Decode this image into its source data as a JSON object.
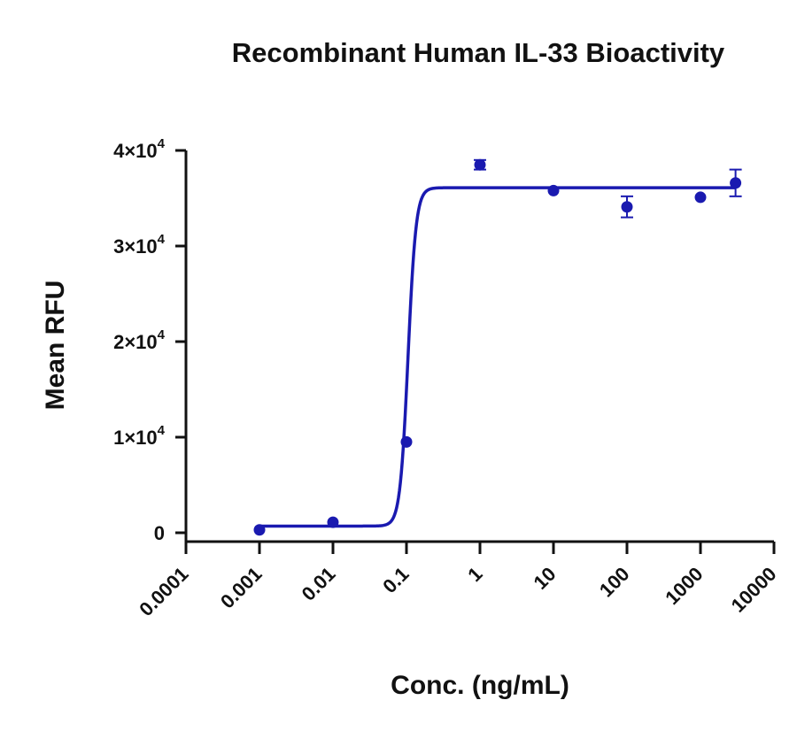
{
  "chart_data": {
    "type": "scatter",
    "title": "Recombinant Human IL-33 Bioactivity",
    "xlabel": "Conc. (ng/mL)",
    "ylabel": "Mean RFU",
    "x_scale": "log",
    "xlim": [
      0.0001,
      10000
    ],
    "ylim": [
      0,
      40000
    ],
    "x_ticks": [
      0.0001,
      0.001,
      0.01,
      0.1,
      1,
      10,
      100,
      1000,
      10000
    ],
    "x_tick_labels": [
      "0.0001",
      "0.001",
      "0.01",
      "0.1",
      "1",
      "10",
      "100",
      "1000",
      "10000"
    ],
    "y_ticks": [
      0,
      10000,
      20000,
      30000,
      40000
    ],
    "y_tick_labels": [
      {
        "mantissa": "0",
        "exponent": ""
      },
      {
        "mantissa": "1×10",
        "exponent": "4"
      },
      {
        "mantissa": "2×10",
        "exponent": "4"
      },
      {
        "mantissa": "3×10",
        "exponent": "4"
      },
      {
        "mantissa": "4×10",
        "exponent": "4"
      }
    ],
    "color": "#1a1ab0",
    "series": [
      {
        "points": [
          {
            "x": 0.001,
            "y": 300,
            "err": 0
          },
          {
            "x": 0.01,
            "y": 1100,
            "err": 0
          },
          {
            "x": 0.1,
            "y": 9500,
            "err": 0
          },
          {
            "x": 1,
            "y": 38500,
            "err": 500
          },
          {
            "x": 10,
            "y": 35800,
            "err": 0
          },
          {
            "x": 100,
            "y": 34100,
            "err": 1100
          },
          {
            "x": 1000,
            "y": 35100,
            "err": 0
          },
          {
            "x": 3000,
            "y": 36600,
            "err": 1400
          }
        ],
        "fit": {
          "model": "4PL",
          "bottom": 700,
          "top": 36100,
          "ec50": 0.105,
          "hill": 8
        }
      }
    ],
    "grid": false,
    "legend": "none"
  }
}
